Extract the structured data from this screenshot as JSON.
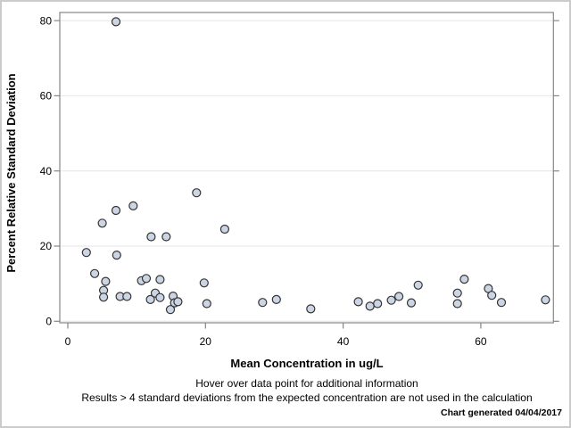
{
  "window": {
    "background": "#ffffff",
    "border_color": "#cbcbcb"
  },
  "colors": {
    "marker_fill": "#ccd5e4",
    "marker_stroke": "#333333",
    "grid": "#e4e4e4",
    "axis": "#868686",
    "text": "#000000"
  },
  "chart_data": {
    "type": "scatter",
    "title": "",
    "xlabel": "Mean Concentration in ug/L",
    "ylabel": "Percent Relative Standard Deviation",
    "xlim": [
      -1.2,
      70.5
    ],
    "ylim": [
      -0.4,
      82.2
    ],
    "x_ticks": [
      0,
      20,
      40,
      60
    ],
    "y_ticks": [
      0,
      20,
      40,
      60,
      80
    ],
    "grid": "horizontal-only",
    "legend": "none",
    "marker": "circle",
    "points": [
      [
        7.0,
        79.7
      ],
      [
        18.7,
        34.2
      ],
      [
        9.5,
        30.7
      ],
      [
        7.0,
        29.5
      ],
      [
        5.0,
        26.1
      ],
      [
        22.8,
        24.5
      ],
      [
        12.1,
        22.5
      ],
      [
        14.3,
        22.5
      ],
      [
        2.7,
        18.3
      ],
      [
        7.1,
        17.6
      ],
      [
        3.9,
        12.7
      ],
      [
        5.5,
        10.6
      ],
      [
        5.2,
        8.2
      ],
      [
        5.2,
        6.4
      ],
      [
        7.6,
        6.6
      ],
      [
        8.6,
        6.6
      ],
      [
        10.7,
        10.8
      ],
      [
        11.4,
        11.4
      ],
      [
        13.4,
        11.1
      ],
      [
        12.0,
        5.8
      ],
      [
        12.7,
        7.5
      ],
      [
        13.4,
        6.3
      ],
      [
        15.3,
        6.7
      ],
      [
        15.5,
        4.9
      ],
      [
        16.0,
        5.2
      ],
      [
        14.9,
        3.1
      ],
      [
        19.8,
        10.2
      ],
      [
        20.2,
        4.7
      ],
      [
        28.3,
        5.0
      ],
      [
        30.3,
        5.8
      ],
      [
        35.3,
        3.3
      ],
      [
        42.2,
        5.2
      ],
      [
        43.9,
        4.0
      ],
      [
        45.0,
        4.7
      ],
      [
        47.0,
        5.6
      ],
      [
        48.1,
        6.6
      ],
      [
        49.9,
        4.9
      ],
      [
        50.9,
        9.6
      ],
      [
        56.6,
        7.5
      ],
      [
        56.6,
        4.7
      ],
      [
        57.6,
        11.2
      ],
      [
        61.1,
        8.7
      ],
      [
        61.6,
        6.9
      ],
      [
        63.0,
        5.0
      ],
      [
        69.4,
        5.7
      ]
    ]
  },
  "footnotes": {
    "hover": "Hover over data point for additional information",
    "results": "Results > 4 standard deviations from the expected concentration are not used in the calculation",
    "generated": "Chart generated 04/04/2017"
  }
}
